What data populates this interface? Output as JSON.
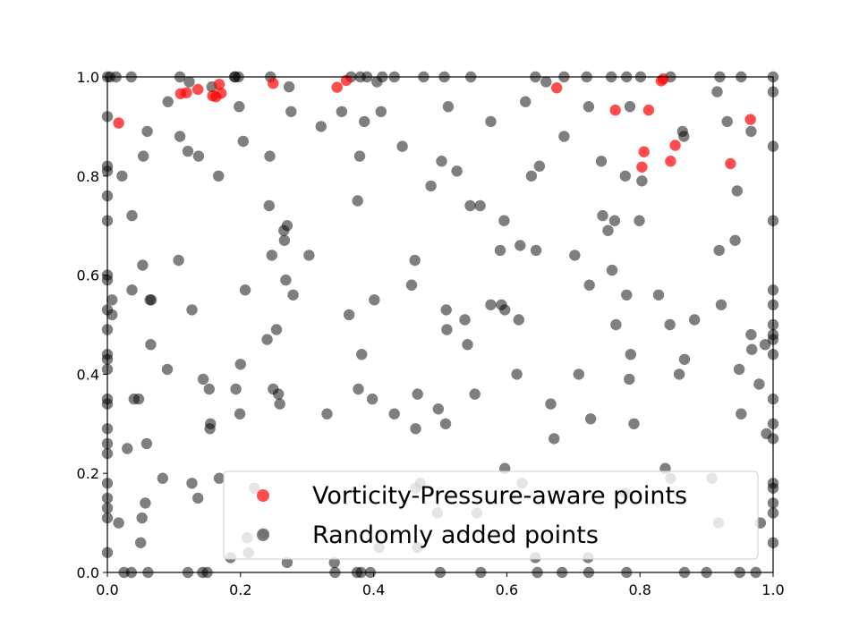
{
  "chart_data": {
    "type": "scatter",
    "title": "",
    "xlabel": "",
    "ylabel": "",
    "xlim": [
      0.0,
      1.0
    ],
    "ylim": [
      0.0,
      1.0
    ],
    "xticks": [
      "0.0",
      "0.2",
      "0.4",
      "0.6",
      "0.8",
      "1.0"
    ],
    "yticks": [
      "0.0",
      "0.2",
      "0.4",
      "0.6",
      "0.8",
      "1.0"
    ],
    "grid": false,
    "legend_position": "lower-right",
    "series": [
      {
        "name": "Vorticity-Pressure-aware points",
        "color": "#ff0000",
        "points": [
          [
            0.017,
            0.907
          ],
          [
            0.11,
            0.966
          ],
          [
            0.119,
            0.968
          ],
          [
            0.136,
            0.975
          ],
          [
            0.158,
            0.962
          ],
          [
            0.163,
            0.96
          ],
          [
            0.168,
            0.985
          ],
          [
            0.171,
            0.967
          ],
          [
            0.249,
            0.987
          ],
          [
            0.345,
            0.979
          ],
          [
            0.359,
            0.993
          ],
          [
            0.675,
            0.978
          ],
          [
            0.763,
            0.933
          ],
          [
            0.813,
            0.933
          ],
          [
            0.803,
            0.818
          ],
          [
            0.806,
            0.849
          ],
          [
            0.846,
            0.83
          ],
          [
            0.853,
            0.862
          ],
          [
            0.832,
            0.992
          ],
          [
            0.835,
            0.996
          ],
          [
            0.936,
            0.825
          ],
          [
            0.966,
            0.914
          ]
        ]
      },
      {
        "name": "Randomly added points",
        "color": "#000000",
        "points": [
          [
            0.0,
            0.92
          ],
          [
            0.0,
            0.82
          ],
          [
            0.0,
            0.81
          ],
          [
            0.0,
            0.76
          ],
          [
            0.0,
            0.71
          ],
          [
            0.0,
            0.6
          ],
          [
            0.0,
            0.59
          ],
          [
            0.0,
            0.53
          ],
          [
            0.0,
            0.49
          ],
          [
            0.0,
            0.44
          ],
          [
            0.0,
            0.43
          ],
          [
            0.0,
            0.41
          ],
          [
            0.0,
            0.35
          ],
          [
            0.0,
            0.34
          ],
          [
            0.0,
            0.29
          ],
          [
            0.0,
            0.26
          ],
          [
            0.0,
            0.24
          ],
          [
            0.0,
            0.18
          ],
          [
            0.0,
            0.15
          ],
          [
            0.0,
            0.13
          ],
          [
            0.0,
            0.11
          ],
          [
            0.0,
            0.04
          ],
          [
            0.0,
            1.0
          ],
          [
            0.007,
            0.55
          ],
          [
            0.007,
            0.52
          ],
          [
            0.013,
            1.0
          ],
          [
            0.022,
            0.8
          ],
          [
            0.017,
            0.1
          ],
          [
            0.03,
            0.25
          ],
          [
            0.036,
            1.0
          ],
          [
            0.037,
            0.72
          ],
          [
            0.037,
            0.57
          ],
          [
            0.04,
            0.35
          ],
          [
            0.047,
            0.35
          ],
          [
            0.05,
            0.06
          ],
          [
            0.052,
            0.11
          ],
          [
            0.053,
            0.62
          ],
          [
            0.054,
            0.84
          ],
          [
            0.057,
            0.14
          ],
          [
            0.059,
            0.26
          ],
          [
            0.06,
            0.89
          ],
          [
            0.064,
            0.55
          ],
          [
            0.065,
            0.46
          ],
          [
            0.066,
            0.55
          ],
          [
            0.083,
            0.19
          ],
          [
            0.09,
            0.41
          ],
          [
            0.091,
            0.95
          ],
          [
            0.107,
            0.63
          ],
          [
            0.109,
            0.88
          ],
          [
            0.109,
            1.0
          ],
          [
            0.121,
            0.85
          ],
          [
            0.123,
            0.99
          ],
          [
            0.127,
            0.53
          ],
          [
            0.127,
            0.18
          ],
          [
            0.136,
            0.15
          ],
          [
            0.137,
            0.84
          ],
          [
            0.144,
            0.39
          ],
          [
            0.153,
            0.37
          ],
          [
            0.154,
            0.29
          ],
          [
            0.155,
            0.3
          ],
          [
            0.157,
            0.98
          ],
          [
            0.167,
            0.8
          ],
          [
            0.168,
            0.19
          ],
          [
            0.191,
            1.0
          ],
          [
            0.193,
            0.37
          ],
          [
            0.198,
            0.94
          ],
          [
            0.199,
            0.32
          ],
          [
            0.2,
            0.42
          ],
          [
            0.204,
            0.87
          ],
          [
            0.207,
            0.57
          ],
          [
            0.221,
            0.17
          ],
          [
            0.24,
            0.47
          ],
          [
            0.243,
            0.74
          ],
          [
            0.244,
            0.84
          ],
          [
            0.247,
            0.64
          ],
          [
            0.249,
            0.37
          ],
          [
            0.254,
            0.49
          ],
          [
            0.257,
            0.36
          ],
          [
            0.259,
            0.34
          ],
          [
            0.265,
            0.69
          ],
          [
            0.266,
            0.67
          ],
          [
            0.268,
            0.59
          ],
          [
            0.27,
            0.7
          ],
          [
            0.273,
            0.98
          ],
          [
            0.276,
            0.93
          ],
          [
            0.279,
            0.56
          ],
          [
            0.303,
            0.64
          ],
          [
            0.321,
            0.9
          ],
          [
            0.33,
            0.32
          ],
          [
            0.352,
            0.93
          ],
          [
            0.363,
            0.52
          ],
          [
            0.376,
            0.75
          ],
          [
            0.377,
            0.37
          ],
          [
            0.379,
            0.84
          ],
          [
            0.382,
            0.44
          ],
          [
            0.386,
            0.91
          ],
          [
            0.398,
            0.35
          ],
          [
            0.401,
            0.55
          ],
          [
            0.405,
            0.99
          ],
          [
            0.411,
            0.93
          ],
          [
            0.413,
            1.0
          ],
          [
            0.431,
            0.32
          ],
          [
            0.443,
            0.86
          ],
          [
            0.457,
            0.58
          ],
          [
            0.462,
            0.63
          ],
          [
            0.463,
            0.29
          ],
          [
            0.466,
            0.36
          ],
          [
            0.486,
            0.78
          ],
          [
            0.497,
            0.33
          ],
          [
            0.502,
            0.83
          ],
          [
            0.508,
            0.3
          ],
          [
            0.509,
            0.53
          ],
          [
            0.51,
            0.49
          ],
          [
            0.512,
            0.94
          ],
          [
            0.525,
            0.81
          ],
          [
            0.537,
            0.51
          ],
          [
            0.541,
            0.46
          ],
          [
            0.545,
            0.74
          ],
          [
            0.552,
            0.36
          ],
          [
            0.56,
            0.74
          ],
          [
            0.576,
            0.54
          ],
          [
            0.576,
            0.91
          ],
          [
            0.59,
            0.65
          ],
          [
            0.592,
            0.54
          ],
          [
            0.596,
            0.71
          ],
          [
            0.597,
            0.53
          ],
          [
            0.615,
            0.4
          ],
          [
            0.618,
            0.51
          ],
          [
            0.62,
            0.66
          ],
          [
            0.628,
            0.95
          ],
          [
            0.637,
            0.8
          ],
          [
            0.644,
            0.65
          ],
          [
            0.649,
            0.82
          ],
          [
            0.659,
            0.99
          ],
          [
            0.666,
            0.34
          ],
          [
            0.671,
            0.27
          ],
          [
            0.686,
            0.88
          ],
          [
            0.702,
            0.64
          ],
          [
            0.708,
            0.4
          ],
          [
            0.723,
            0.94
          ],
          [
            0.724,
            0.58
          ],
          [
            0.726,
            0.31
          ],
          [
            0.742,
            0.83
          ],
          [
            0.744,
            0.72
          ],
          [
            0.752,
            0.69
          ],
          [
            0.758,
            0.61
          ],
          [
            0.762,
            0.71
          ],
          [
            0.764,
            0.5
          ],
          [
            0.778,
            0.8
          ],
          [
            0.78,
            0.56
          ],
          [
            0.784,
            0.39
          ],
          [
            0.785,
            0.94
          ],
          [
            0.786,
            0.44
          ],
          [
            0.791,
            0.3
          ],
          [
            0.799,
            0.71
          ],
          [
            0.803,
            0.79
          ],
          [
            0.828,
            0.56
          ],
          [
            0.845,
            0.5
          ],
          [
            0.859,
            0.4
          ],
          [
            0.864,
            0.89
          ],
          [
            0.866,
            0.88
          ],
          [
            0.867,
            0.43
          ],
          [
            0.882,
            0.51
          ],
          [
            0.916,
            0.97
          ],
          [
            0.919,
            0.65
          ],
          [
            0.922,
            0.54
          ],
          [
            0.931,
            0.91
          ],
          [
            0.943,
            0.67
          ],
          [
            0.946,
            0.77
          ],
          [
            0.949,
            0.41
          ],
          [
            0.952,
            0.32
          ],
          [
            0.967,
            0.48
          ],
          [
            0.968,
            0.45
          ],
          [
            0.967,
            0.89
          ],
          [
            0.979,
            0.38
          ],
          [
            0.988,
            0.46
          ],
          [
            0.99,
            0.28
          ],
          [
            1.0,
            0.97
          ],
          [
            1.0,
            1.0
          ],
          [
            1.0,
            0.86
          ],
          [
            1.0,
            0.71
          ],
          [
            1.0,
            0.57
          ],
          [
            1.0,
            0.54
          ],
          [
            1.0,
            0.5
          ],
          [
            1.0,
            0.48
          ],
          [
            1.0,
            0.47
          ],
          [
            1.0,
            0.44
          ],
          [
            1.0,
            0.35
          ],
          [
            1.0,
            0.3
          ],
          [
            1.0,
            0.27
          ],
          [
            1.0,
            0.18
          ],
          [
            1.0,
            0.17
          ],
          [
            1.0,
            0.14
          ],
          [
            1.0,
            0.12
          ],
          [
            1.0,
            0.06
          ],
          [
            0.004,
            1.0
          ],
          [
            0.192,
            1.0
          ],
          [
            0.197,
            1.0
          ],
          [
            0.245,
            1.0
          ],
          [
            0.366,
            1.0
          ],
          [
            0.38,
            1.0
          ],
          [
            0.39,
            1.0
          ],
          [
            0.431,
            1.0
          ],
          [
            0.475,
            1.0
          ],
          [
            0.506,
            1.0
          ],
          [
            0.546,
            1.0
          ],
          [
            0.643,
            1.0
          ],
          [
            0.686,
            1.0
          ],
          [
            0.72,
            1.0
          ],
          [
            0.757,
            1.0
          ],
          [
            0.78,
            1.0
          ],
          [
            0.801,
            1.0
          ],
          [
            0.846,
            1.0
          ],
          [
            0.92,
            1.0
          ],
          [
            0.952,
            1.0
          ],
          [
            0.025,
            0.0
          ],
          [
            0.036,
            0.0
          ],
          [
            0.061,
            0.0
          ],
          [
            0.121,
            0.0
          ],
          [
            0.143,
            0.0
          ],
          [
            0.15,
            0.0
          ],
          [
            0.342,
            0.0
          ],
          [
            0.375,
            0.0
          ],
          [
            0.381,
            0.0
          ],
          [
            0.395,
            0.0
          ],
          [
            0.5,
            0.0
          ],
          [
            0.561,
            0.0
          ],
          [
            0.646,
            0.0
          ],
          [
            0.683,
            0.0
          ],
          [
            0.723,
            0.0
          ],
          [
            0.78,
            0.0
          ],
          [
            0.867,
            0.0
          ],
          [
            0.9,
            0.0
          ],
          [
            0.95,
            0.0
          ],
          [
            0.974,
            0.0
          ],
          [
            0.341,
            0.02
          ],
          [
            0.27,
            0.02
          ],
          [
            0.185,
            0.03
          ],
          [
            0.235,
            0.08
          ],
          [
            0.408,
            0.05
          ],
          [
            0.466,
            0.05
          ],
          [
            0.555,
            0.12
          ],
          [
            0.496,
            0.12
          ],
          [
            0.463,
            0.17
          ],
          [
            0.47,
            0.18
          ],
          [
            0.597,
            0.21
          ],
          [
            0.623,
            0.18
          ],
          [
            0.643,
            0.03
          ],
          [
            0.722,
            0.03
          ],
          [
            0.778,
            0.16
          ],
          [
            0.838,
            0.21
          ],
          [
            0.846,
            0.19
          ],
          [
            0.908,
            0.19
          ],
          [
            0.918,
            0.1
          ],
          [
            0.981,
            0.1
          ],
          [
            0.21,
            0.07
          ],
          [
            0.212,
            0.04
          ]
        ]
      }
    ]
  }
}
